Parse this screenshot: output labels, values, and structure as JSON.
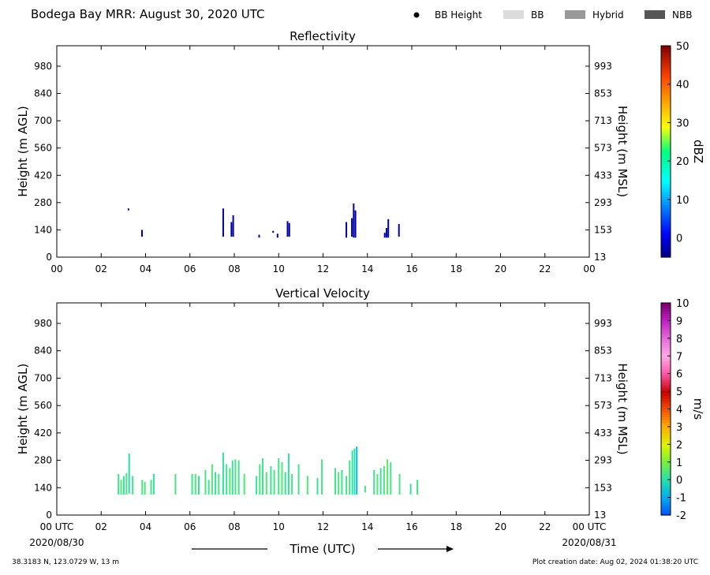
{
  "page": {
    "title": "Bodega Bay MRR:  August 30, 2020 UTC",
    "location": "38.3183 N, 123.0729 W, 13 m",
    "creation": "Plot creation date: Aug 02, 2024 01:38:20 UTC"
  },
  "legend": [
    {
      "label": "BB Height",
      "kind": "dot",
      "color": "#000000"
    },
    {
      "label": "BB",
      "kind": "patch",
      "color": "#dcdcdc"
    },
    {
      "label": "Hybrid",
      "kind": "patch",
      "color": "#999999"
    },
    {
      "label": "NBB",
      "kind": "patch",
      "color": "#555555"
    }
  ],
  "xaxis": {
    "ticks": [
      0,
      2,
      4,
      6,
      8,
      10,
      12,
      14,
      16,
      18,
      20,
      22,
      24
    ],
    "top_labels": [
      "00",
      "02",
      "04",
      "06",
      "08",
      "10",
      "12",
      "14",
      "16",
      "18",
      "20",
      "22",
      "00"
    ],
    "bottom_labels": [
      "00 UTC",
      "02",
      "04",
      "06",
      "08",
      "10",
      "12",
      "14",
      "16",
      "18",
      "20",
      "22",
      "00 UTC"
    ],
    "date_start": "2020/08/30",
    "date_end": "2020/08/31",
    "label": "Time (UTC)"
  },
  "chart_data": [
    {
      "type": "heatmap",
      "title": "Reflectivity",
      "xlabel": "Time (UTC)",
      "ylabel": "Height (m AGL)",
      "ylabel_right": "Height (m MSL)",
      "xlim": [
        0,
        24
      ],
      "ylim": [
        0,
        1085
      ],
      "yticks_left": [
        0,
        140,
        280,
        420,
        560,
        700,
        840,
        980
      ],
      "yticks_right": [
        13,
        153,
        293,
        433,
        573,
        713,
        853,
        993
      ],
      "colorbar": {
        "label": "dBZ",
        "min": -5,
        "max": 50,
        "ticks": [
          0,
          10,
          20,
          30,
          40,
          50
        ],
        "palette": "jet"
      },
      "cells": [
        {
          "t": 3.23,
          "h0": 240,
          "h1": 250,
          "v": -3
        },
        {
          "t": 3.84,
          "h0": 105,
          "h1": 140,
          "v": -3
        },
        {
          "t": 7.5,
          "h0": 105,
          "h1": 250,
          "v": -3
        },
        {
          "t": 7.87,
          "h0": 105,
          "h1": 180,
          "v": -3
        },
        {
          "t": 7.95,
          "h0": 105,
          "h1": 215,
          "v": -3
        },
        {
          "t": 9.12,
          "h0": 100,
          "h1": 115,
          "v": -3
        },
        {
          "t": 9.75,
          "h0": 125,
          "h1": 135,
          "v": -3
        },
        {
          "t": 9.95,
          "h0": 100,
          "h1": 120,
          "v": -3
        },
        {
          "t": 10.4,
          "h0": 105,
          "h1": 185,
          "v": -3
        },
        {
          "t": 10.48,
          "h0": 105,
          "h1": 175,
          "v": -3
        },
        {
          "t": 13.05,
          "h0": 100,
          "h1": 180,
          "v": -3
        },
        {
          "t": 13.3,
          "h0": 105,
          "h1": 200,
          "v": -3
        },
        {
          "t": 13.38,
          "h0": 100,
          "h1": 275,
          "v": -3
        },
        {
          "t": 13.46,
          "h0": 100,
          "h1": 240,
          "v": -3
        },
        {
          "t": 14.78,
          "h0": 100,
          "h1": 125,
          "v": -3
        },
        {
          "t": 14.86,
          "h0": 100,
          "h1": 150,
          "v": -3
        },
        {
          "t": 14.94,
          "h0": 100,
          "h1": 195,
          "v": -3
        },
        {
          "t": 15.42,
          "h0": 105,
          "h1": 170,
          "v": -3
        }
      ]
    },
    {
      "type": "heatmap",
      "title": "Vertical Velocity",
      "xlabel": "Time (UTC)",
      "ylabel": "Height (m AGL)",
      "ylabel_right": "Height (m MSL)",
      "xlim": [
        0,
        24
      ],
      "ylim": [
        0,
        1085
      ],
      "yticks_left": [
        0,
        140,
        280,
        420,
        560,
        700,
        840,
        980
      ],
      "yticks_right": [
        13,
        153,
        293,
        433,
        573,
        713,
        853,
        993
      ],
      "colorbar": {
        "label": "m/s",
        "min": -2,
        "max": 10,
        "ticks": [
          -2,
          -1,
          0,
          1,
          2,
          3,
          4,
          5,
          6,
          7,
          8,
          9,
          10
        ],
        "palette": "velocity"
      },
      "cells": [
        {
          "t": 2.78,
          "h0": 105,
          "h1": 210,
          "v": 0.3
        },
        {
          "t": 2.9,
          "h0": 105,
          "h1": 180,
          "v": 0.5
        },
        {
          "t": 3.02,
          "h0": 105,
          "h1": 200,
          "v": 0.2
        },
        {
          "t": 3.14,
          "h0": 105,
          "h1": 215,
          "v": 0.4
        },
        {
          "t": 3.26,
          "h0": 110,
          "h1": 315,
          "v": 0.0
        },
        {
          "t": 3.42,
          "h0": 105,
          "h1": 200,
          "v": 0.3
        },
        {
          "t": 3.85,
          "h0": 105,
          "h1": 180,
          "v": 0.4
        },
        {
          "t": 3.97,
          "h0": 105,
          "h1": 170,
          "v": 0.5
        },
        {
          "t": 4.25,
          "h0": 105,
          "h1": 180,
          "v": 0.3
        },
        {
          "t": 4.37,
          "h0": 105,
          "h1": 210,
          "v": 0.2
        },
        {
          "t": 5.35,
          "h0": 105,
          "h1": 210,
          "v": 0.4
        },
        {
          "t": 6.1,
          "h0": 105,
          "h1": 210,
          "v": 0.3
        },
        {
          "t": 6.25,
          "h0": 105,
          "h1": 210,
          "v": 0.5
        },
        {
          "t": 6.4,
          "h0": 105,
          "h1": 200,
          "v": 0.2
        },
        {
          "t": 6.7,
          "h0": 105,
          "h1": 230,
          "v": 0.4
        },
        {
          "t": 6.85,
          "h0": 105,
          "h1": 180,
          "v": 0.3
        },
        {
          "t": 7.0,
          "h0": 105,
          "h1": 260,
          "v": 0.5
        },
        {
          "t": 7.15,
          "h0": 105,
          "h1": 220,
          "v": 0.2
        },
        {
          "t": 7.3,
          "h0": 105,
          "h1": 210,
          "v": 0.4
        },
        {
          "t": 7.5,
          "h0": 105,
          "h1": 320,
          "v": 0.1
        },
        {
          "t": 7.65,
          "h0": 105,
          "h1": 260,
          "v": 0.3
        },
        {
          "t": 7.8,
          "h0": 105,
          "h1": 240,
          "v": 0.5
        },
        {
          "t": 7.92,
          "h0": 105,
          "h1": 280,
          "v": 0.2
        },
        {
          "t": 8.05,
          "h0": 105,
          "h1": 285,
          "v": 0.4
        },
        {
          "t": 8.2,
          "h0": 105,
          "h1": 280,
          "v": 0.3
        },
        {
          "t": 8.45,
          "h0": 105,
          "h1": 210,
          "v": 0.5
        },
        {
          "t": 9.0,
          "h0": 105,
          "h1": 200,
          "v": 0.2
        },
        {
          "t": 9.15,
          "h0": 105,
          "h1": 260,
          "v": 0.4
        },
        {
          "t": 9.28,
          "h0": 105,
          "h1": 290,
          "v": 0.3
        },
        {
          "t": 9.45,
          "h0": 105,
          "h1": 220,
          "v": 0.5
        },
        {
          "t": 9.65,
          "h0": 105,
          "h1": 250,
          "v": 0.2
        },
        {
          "t": 9.8,
          "h0": 105,
          "h1": 230,
          "v": 0.4
        },
        {
          "t": 10.0,
          "h0": 105,
          "h1": 290,
          "v": 0.3
        },
        {
          "t": 10.15,
          "h0": 105,
          "h1": 270,
          "v": 0.5
        },
        {
          "t": 10.3,
          "h0": 105,
          "h1": 220,
          "v": 0.2
        },
        {
          "t": 10.45,
          "h0": 105,
          "h1": 315,
          "v": 0.1
        },
        {
          "t": 10.6,
          "h0": 105,
          "h1": 210,
          "v": 0.4
        },
        {
          "t": 10.9,
          "h0": 105,
          "h1": 260,
          "v": 0.3
        },
        {
          "t": 11.3,
          "h0": 105,
          "h1": 200,
          "v": 0.5
        },
        {
          "t": 11.75,
          "h0": 105,
          "h1": 190,
          "v": 0.2
        },
        {
          "t": 11.95,
          "h0": 105,
          "h1": 285,
          "v": 0.4
        },
        {
          "t": 12.55,
          "h0": 105,
          "h1": 240,
          "v": 0.3
        },
        {
          "t": 12.7,
          "h0": 105,
          "h1": 220,
          "v": 0.5
        },
        {
          "t": 12.85,
          "h0": 105,
          "h1": 230,
          "v": 0.2
        },
        {
          "t": 13.05,
          "h0": 105,
          "h1": 200,
          "v": 0.4
        },
        {
          "t": 13.2,
          "h0": 105,
          "h1": 280,
          "v": 0.3
        },
        {
          "t": 13.32,
          "h0": 105,
          "h1": 330,
          "v": 0.1
        },
        {
          "t": 13.42,
          "h0": 105,
          "h1": 340,
          "v": 0.0
        },
        {
          "t": 13.52,
          "h0": 105,
          "h1": 350,
          "v": -0.8
        },
        {
          "t": 13.9,
          "h0": 115,
          "h1": 150,
          "v": 0.4
        },
        {
          "t": 14.3,
          "h0": 105,
          "h1": 230,
          "v": 0.3
        },
        {
          "t": 14.45,
          "h0": 105,
          "h1": 210,
          "v": 0.5
        },
        {
          "t": 14.6,
          "h0": 105,
          "h1": 240,
          "v": 0.2
        },
        {
          "t": 14.75,
          "h0": 105,
          "h1": 250,
          "v": 0.4
        },
        {
          "t": 14.9,
          "h0": 105,
          "h1": 285,
          "v": 0.7
        },
        {
          "t": 15.05,
          "h0": 105,
          "h1": 270,
          "v": 0.3
        },
        {
          "t": 15.45,
          "h0": 105,
          "h1": 210,
          "v": 0.4
        },
        {
          "t": 15.95,
          "h0": 105,
          "h1": 160,
          "v": 0.2
        },
        {
          "t": 16.25,
          "h0": 105,
          "h1": 180,
          "v": 0.4
        }
      ]
    }
  ]
}
